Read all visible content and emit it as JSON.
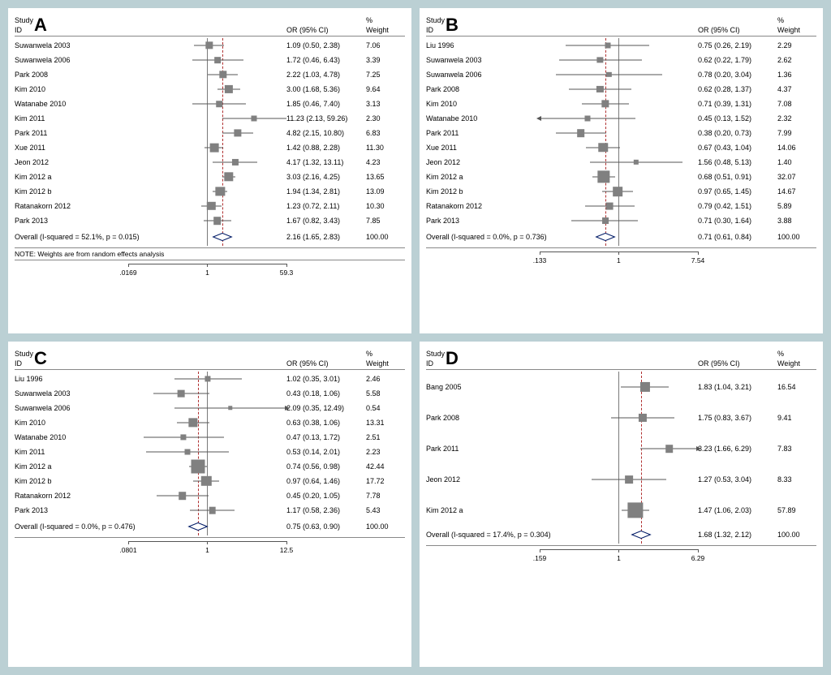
{
  "background_color": "#bbd0d4",
  "panel_bg": "#ffffff",
  "refline_color": "#7a7a7a",
  "overall_line_color": "#b03030",
  "marker_color": "#808080",
  "diamond_border": "#001a66",
  "panels": {
    "A": {
      "letter": "A",
      "header_study": "Study",
      "header_id": "ID",
      "header_or": "OR (95% CI)",
      "header_pct": "%",
      "header_wt": "Weight",
      "log_min": 0.0169,
      "log_ref": 1,
      "log_max": 59.3,
      "overall_or": 2.16,
      "rows": [
        {
          "study": "Suwanwela 2003",
          "or": 1.09,
          "lo": 0.5,
          "hi": 2.38,
          "wt": 7.06,
          "txt": "1.09 (0.50, 2.38)"
        },
        {
          "study": "Suwanwela 2006",
          "or": 1.72,
          "lo": 0.46,
          "hi": 6.43,
          "wt": 3.39,
          "txt": "1.72 (0.46, 6.43)"
        },
        {
          "study": "Park 2008",
          "or": 2.22,
          "lo": 1.03,
          "hi": 4.78,
          "wt": 7.25,
          "txt": "2.22 (1.03, 4.78)"
        },
        {
          "study": "Kim 2010",
          "or": 3.0,
          "lo": 1.68,
          "hi": 5.36,
          "wt": 9.64,
          "txt": "3.00 (1.68, 5.36)"
        },
        {
          "study": "Watanabe 2010",
          "or": 1.85,
          "lo": 0.46,
          "hi": 7.4,
          "wt": 3.13,
          "txt": "1.85 (0.46, 7.40)"
        },
        {
          "study": "Kim 2011",
          "or": 11.23,
          "lo": 2.13,
          "hi": 59.26,
          "wt": 2.3,
          "txt": "11.23 (2.13, 59.26)"
        },
        {
          "study": "Park 2011",
          "or": 4.82,
          "lo": 2.15,
          "hi": 10.8,
          "wt": 6.83,
          "txt": "4.82 (2.15, 10.80)"
        },
        {
          "study": "Xue 2011",
          "or": 1.42,
          "lo": 0.88,
          "hi": 2.28,
          "wt": 11.3,
          "txt": "1.42 (0.88, 2.28)"
        },
        {
          "study": "Jeon 2012",
          "or": 4.17,
          "lo": 1.32,
          "hi": 13.11,
          "wt": 4.23,
          "txt": "4.17 (1.32, 13.11)"
        },
        {
          "study": "Kim 2012 a",
          "or": 3.03,
          "lo": 2.16,
          "hi": 4.25,
          "wt": 13.65,
          "txt": "3.03 (2.16, 4.25)"
        },
        {
          "study": "Kim 2012 b",
          "or": 1.94,
          "lo": 1.34,
          "hi": 2.81,
          "wt": 13.09,
          "txt": "1.94 (1.34, 2.81)"
        },
        {
          "study": "Ratanakorn 2012",
          "or": 1.23,
          "lo": 0.72,
          "hi": 2.11,
          "wt": 10.3,
          "txt": "1.23 (0.72, 2.11)"
        },
        {
          "study": "Park 2013",
          "or": 1.67,
          "lo": 0.82,
          "hi": 3.43,
          "wt": 7.85,
          "txt": "1.67 (0.82, 3.43)"
        }
      ],
      "overall_label": "Overall  (I-squared = 52.1%, p = 0.015)",
      "overall_txt": "2.16 (1.65, 2.83)",
      "overall_wt": "100.00",
      "overall_lo": 1.65,
      "overall_hi": 2.83,
      "note": "NOTE: Weights are from random effects analysis",
      "ticks": [
        {
          "v": 0.0169,
          "l": ".0169"
        },
        {
          "v": 1,
          "l": "1"
        },
        {
          "v": 59.3,
          "l": "59.3"
        }
      ]
    },
    "B": {
      "letter": "B",
      "header_study": "Study",
      "header_id": "ID",
      "header_or": "OR (95% CI)",
      "header_pct": "%",
      "header_wt": "Weight",
      "log_min": 0.133,
      "log_ref": 1,
      "log_max": 7.54,
      "overall_or": 0.71,
      "rows": [
        {
          "study": "Liu 1996",
          "or": 0.75,
          "lo": 0.26,
          "hi": 2.19,
          "wt": 2.29,
          "txt": "0.75 (0.26, 2.19)"
        },
        {
          "study": "Suwanwela 2003",
          "or": 0.62,
          "lo": 0.22,
          "hi": 1.79,
          "wt": 2.62,
          "txt": "0.62 (0.22, 1.79)"
        },
        {
          "study": "Suwanwela 2006",
          "or": 0.78,
          "lo": 0.2,
          "hi": 3.04,
          "wt": 1.36,
          "txt": "0.78 (0.20, 3.04)"
        },
        {
          "study": "Park 2008",
          "or": 0.62,
          "lo": 0.28,
          "hi": 1.37,
          "wt": 4.37,
          "txt": "0.62 (0.28, 1.37)"
        },
        {
          "study": "Kim 2010",
          "or": 0.71,
          "lo": 0.39,
          "hi": 1.31,
          "wt": 7.08,
          "txt": "0.71 (0.39, 1.31)"
        },
        {
          "study": "Watanabe 2010",
          "or": 0.45,
          "lo": 0.13,
          "hi": 1.52,
          "wt": 2.32,
          "txt": "0.45 (0.13, 1.52)",
          "arrowL": true
        },
        {
          "study": "Park 2011",
          "or": 0.38,
          "lo": 0.2,
          "hi": 0.73,
          "wt": 7.99,
          "txt": "0.38 (0.20, 0.73)"
        },
        {
          "study": "Xue 2011",
          "or": 0.67,
          "lo": 0.43,
          "hi": 1.04,
          "wt": 14.06,
          "txt": "0.67 (0.43, 1.04)"
        },
        {
          "study": "Jeon 2012",
          "or": 1.56,
          "lo": 0.48,
          "hi": 5.13,
          "wt": 1.4,
          "txt": "1.56 (0.48, 5.13)"
        },
        {
          "study": "Kim 2012 a",
          "or": 0.68,
          "lo": 0.51,
          "hi": 0.91,
          "wt": 32.07,
          "txt": "0.68 (0.51, 0.91)"
        },
        {
          "study": "Kim 2012 b",
          "or": 0.97,
          "lo": 0.65,
          "hi": 1.45,
          "wt": 14.67,
          "txt": "0.97 (0.65, 1.45)"
        },
        {
          "study": "Ratanakorn 2012",
          "or": 0.79,
          "lo": 0.42,
          "hi": 1.51,
          "wt": 5.89,
          "txt": "0.79 (0.42, 1.51)"
        },
        {
          "study": "Park 2013",
          "or": 0.71,
          "lo": 0.3,
          "hi": 1.64,
          "wt": 3.88,
          "txt": "0.71 (0.30, 1.64)"
        }
      ],
      "overall_label": "Overall  (I-squared = 0.0%, p = 0.736)",
      "overall_txt": "0.71 (0.61, 0.84)",
      "overall_wt": "100.00",
      "overall_lo": 0.61,
      "overall_hi": 0.84,
      "ticks": [
        {
          "v": 0.133,
          "l": ".133"
        },
        {
          "v": 1,
          "l": "1"
        },
        {
          "v": 7.54,
          "l": "7.54"
        }
      ]
    },
    "C": {
      "letter": "C",
      "header_study": "Study",
      "header_id": "ID",
      "header_or": "OR (95% CI)",
      "header_pct": "%",
      "header_wt": "Weight",
      "log_min": 0.0801,
      "log_ref": 1,
      "log_max": 12.5,
      "overall_or": 0.75,
      "rows": [
        {
          "study": "Liu 1996",
          "or": 1.02,
          "lo": 0.35,
          "hi": 3.01,
          "wt": 2.46,
          "txt": "1.02 (0.35, 3.01)"
        },
        {
          "study": "Suwanwela 2003",
          "or": 0.43,
          "lo": 0.18,
          "hi": 1.06,
          "wt": 5.58,
          "txt": "0.43 (0.18, 1.06)"
        },
        {
          "study": "Suwanwela 2006",
          "or": 2.09,
          "lo": 0.35,
          "hi": 12.49,
          "wt": 0.54,
          "txt": "2.09 (0.35, 12.49)",
          "arrowR": true
        },
        {
          "study": "Kim 2010",
          "or": 0.63,
          "lo": 0.38,
          "hi": 1.06,
          "wt": 13.31,
          "txt": "0.63 (0.38, 1.06)"
        },
        {
          "study": "Watanabe 2010",
          "or": 0.47,
          "lo": 0.13,
          "hi": 1.72,
          "wt": 2.51,
          "txt": "0.47 (0.13, 1.72)"
        },
        {
          "study": "Kim 2011",
          "or": 0.53,
          "lo": 0.14,
          "hi": 2.01,
          "wt": 2.23,
          "txt": "0.53 (0.14, 2.01)"
        },
        {
          "study": "Kim 2012 a",
          "or": 0.74,
          "lo": 0.56,
          "hi": 0.98,
          "wt": 42.44,
          "txt": "0.74 (0.56, 0.98)"
        },
        {
          "study": "Kim 2012 b",
          "or": 0.97,
          "lo": 0.64,
          "hi": 1.46,
          "wt": 17.72,
          "txt": "0.97 (0.64, 1.46)"
        },
        {
          "study": "Ratanakorn 2012",
          "or": 0.45,
          "lo": 0.2,
          "hi": 1.05,
          "wt": 7.78,
          "txt": "0.45 (0.20, 1.05)"
        },
        {
          "study": "Park 2013",
          "or": 1.17,
          "lo": 0.58,
          "hi": 2.36,
          "wt": 5.43,
          "txt": "1.17 (0.58, 2.36)"
        }
      ],
      "overall_label": "Overall  (I-squared = 0.0%, p = 0.476)",
      "overall_txt": "0.75 (0.63, 0.90)",
      "overall_wt": "100.00",
      "overall_lo": 0.63,
      "overall_hi": 0.9,
      "ticks": [
        {
          "v": 0.0801,
          "l": ".0801"
        },
        {
          "v": 1,
          "l": "1"
        },
        {
          "v": 12.5,
          "l": "12.5"
        }
      ]
    },
    "D": {
      "letter": "D",
      "header_study": "Study",
      "header_id": "ID",
      "header_or": "OR (95% CI)",
      "header_pct": "%",
      "header_wt": "Weight",
      "log_min": 0.159,
      "log_ref": 1,
      "log_max": 6.29,
      "overall_or": 1.68,
      "rows": [
        {
          "study": "Bang 2005",
          "or": 1.83,
          "lo": 1.04,
          "hi": 3.21,
          "wt": 16.54,
          "txt": "1.83 (1.04, 3.21)"
        },
        {
          "study": "Park 2008",
          "or": 1.75,
          "lo": 0.83,
          "hi": 3.67,
          "wt": 9.41,
          "txt": "1.75 (0.83, 3.67)"
        },
        {
          "study": "Park 2011",
          "or": 3.23,
          "lo": 1.66,
          "hi": 6.29,
          "wt": 7.83,
          "txt": "3.23 (1.66, 6.29)",
          "arrowR": true
        },
        {
          "study": "Jeon 2012",
          "or": 1.27,
          "lo": 0.53,
          "hi": 3.04,
          "wt": 8.33,
          "txt": "1.27 (0.53, 3.04)"
        },
        {
          "study": "Kim 2012 a",
          "or": 1.47,
          "lo": 1.06,
          "hi": 2.03,
          "wt": 57.89,
          "txt": "1.47 (1.06, 2.03)"
        }
      ],
      "overall_label": "Overall  (I-squared = 17.4%, p = 0.304)",
      "overall_txt": "1.68 (1.32, 2.12)",
      "overall_wt": "100.00",
      "overall_lo": 1.32,
      "overall_hi": 2.12,
      "ticks": [
        {
          "v": 0.159,
          "l": ".159"
        },
        {
          "v": 1,
          "l": "1"
        },
        {
          "v": 6.29,
          "l": "6.29"
        }
      ],
      "tall": true
    }
  }
}
